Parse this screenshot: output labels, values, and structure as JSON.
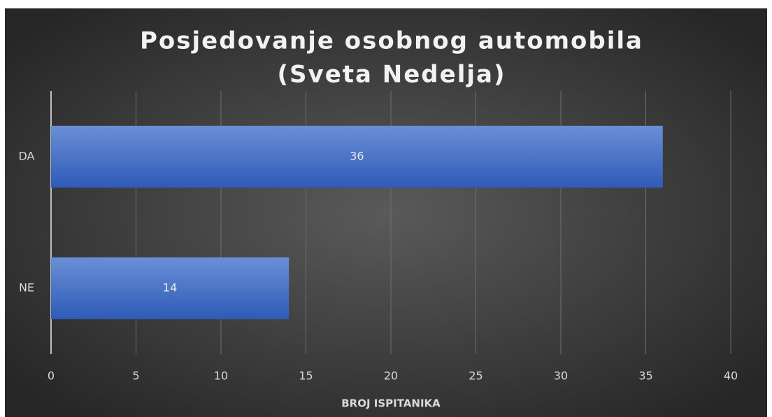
{
  "chart_data": {
    "type": "bar",
    "orientation": "horizontal",
    "title": [
      "Posjedovanje osobnog automobila",
      "(Sveta Nedelja)"
    ],
    "x_label": "BROJ ISPITANIKA",
    "categories": [
      "DA",
      "NE"
    ],
    "values": [
      36,
      14
    ],
    "color": "#4472c4",
    "xlim": [
      0,
      40
    ],
    "xticks": [
      0,
      5,
      10,
      15,
      20,
      25,
      30,
      35,
      40
    ],
    "grid": true
  }
}
